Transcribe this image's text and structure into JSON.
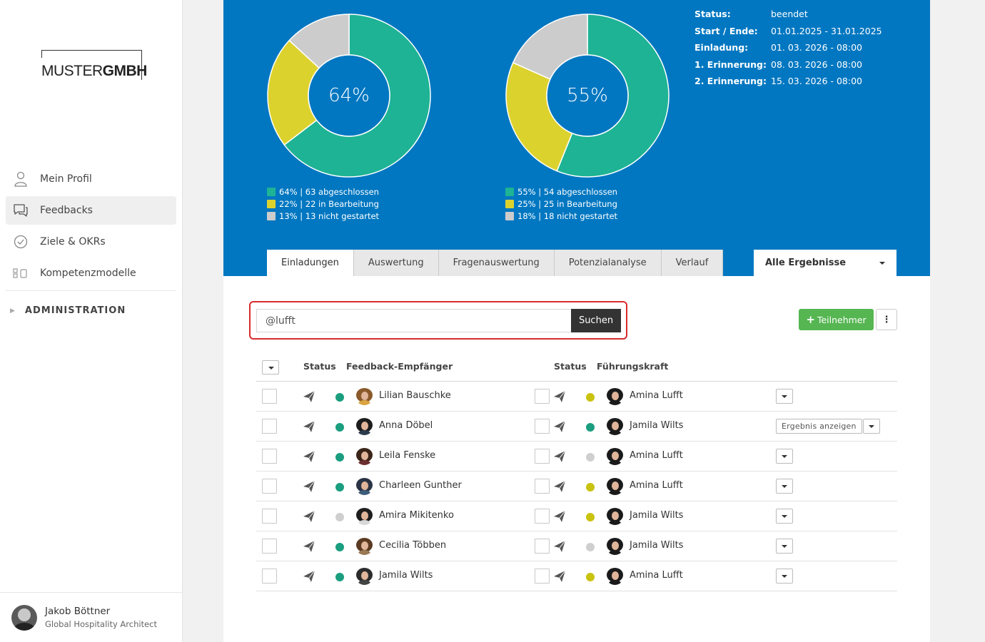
{
  "brand": {
    "logo_light": "MUSTER",
    "logo_bold": "GMBH"
  },
  "sidebar": {
    "items": [
      {
        "label": "Mein Profil",
        "icon": "person-icon",
        "active": false
      },
      {
        "label": "Feedbacks",
        "icon": "chat-bubbles-icon",
        "active": true
      },
      {
        "label": "Ziele & OKRs",
        "icon": "check-circle-icon",
        "active": false
      },
      {
        "label": "Kompetenzmodelle",
        "icon": "blocks-icon",
        "active": false
      }
    ],
    "admin_label": "ADMINISTRATION"
  },
  "user": {
    "name": "Jakob Böttner",
    "role": "Global Hospitality Architect"
  },
  "donuts": [
    {
      "center": "64%",
      "segments": [
        {
          "value": 64,
          "color": "#1db394"
        },
        {
          "value": 22,
          "color": "#dcd22e"
        },
        {
          "value": 13,
          "color": "#cccccc"
        }
      ],
      "legend": [
        "64% | 63 abgeschlossen",
        "22% | 22 in Bearbeitung",
        "13% | 13 nicht gestartet"
      ]
    },
    {
      "center": "55%",
      "segments": [
        {
          "value": 55,
          "color": "#1db394"
        },
        {
          "value": 25,
          "color": "#dcd22e"
        },
        {
          "value": 18,
          "color": "#cccccc"
        }
      ],
      "legend": [
        "55% | 54 abgeschlossen",
        "25% | 25 in Bearbeitung",
        "18% | 18 nicht gestartet"
      ]
    }
  ],
  "info": [
    {
      "key": "Status:",
      "value": "beendet"
    },
    {
      "key": "Start / Ende:",
      "value": "01.01.2025 - 31.01.2025"
    },
    {
      "key": "Einladung:",
      "value": "01. 03. 2026 - 08:00"
    },
    {
      "key": "1. Erinnerung:",
      "value": "08. 03. 2026 - 08:00"
    },
    {
      "key": "2. Erinnerung:",
      "value": "15. 03. 2026 - 08:00"
    }
  ],
  "tabs": [
    "Einladungen",
    "Auswertung",
    "Fragenauswertung",
    "Potenzialanalyse",
    "Verlauf"
  ],
  "filter_select": "Alle Ergebnisse",
  "search": {
    "value": "@lufft",
    "button": "Suchen"
  },
  "add_participant": "Teilnehmer",
  "table": {
    "headers": {
      "status1": "Status",
      "recipient": "Feedback-Empfänger",
      "status2": "Status",
      "manager": "Führungskraft"
    },
    "rows": [
      {
        "recipient": "Lilian Bauschke",
        "status1": "#1a9e7f",
        "manager": "Amina Lufft",
        "status2": "#c9c20f",
        "result": ""
      },
      {
        "recipient": "Anna Döbel",
        "status1": "#1a9e7f",
        "manager": "Jamila Wilts",
        "status2": "#1a9e7f",
        "result": "Ergebnis anzeigen"
      },
      {
        "recipient": "Leila Fenske",
        "status1": "#1a9e7f",
        "manager": "Amina Lufft",
        "status2": "#cfcfcf",
        "result": ""
      },
      {
        "recipient": "Charleen Gunther",
        "status1": "#1a9e7f",
        "manager": "Amina Lufft",
        "status2": "#c9c20f",
        "result": ""
      },
      {
        "recipient": "Amira Mikitenko",
        "status1": "#cfcfcf",
        "manager": "Jamila Wilts",
        "status2": "#c9c20f",
        "result": ""
      },
      {
        "recipient": "Cecilia Többen",
        "status1": "#1a9e7f",
        "manager": "Jamila Wilts",
        "status2": "#cfcfcf",
        "result": ""
      },
      {
        "recipient": "Jamila Wilts",
        "status1": "#1a9e7f",
        "manager": "Amina Lufft",
        "status2": "#c9c20f",
        "result": ""
      }
    ]
  }
}
